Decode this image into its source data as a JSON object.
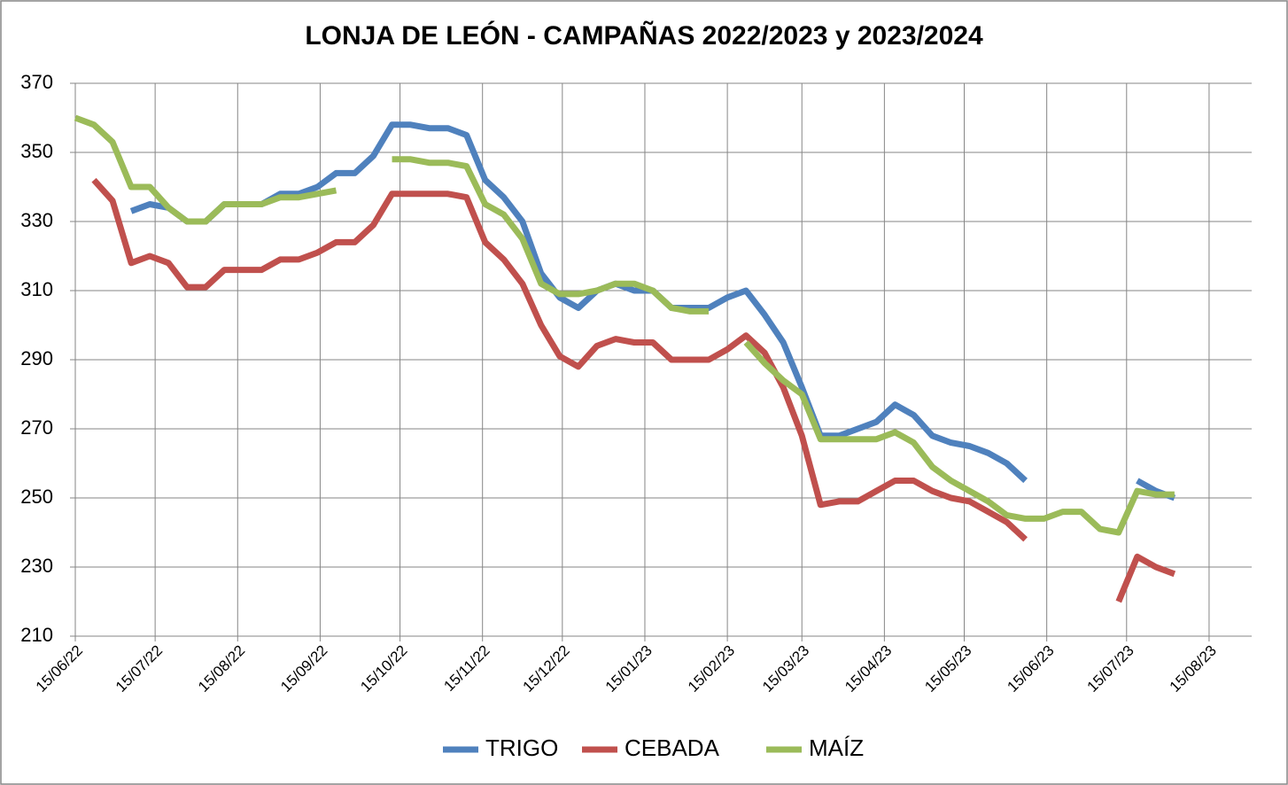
{
  "chart_data": {
    "type": "line",
    "title": "LONJA DE LEÓN - CAMPAÑAS 2022/2023 y 2023/2024",
    "x": [
      "15/06/22",
      "22/06/22",
      "29/06/22",
      "06/07/22",
      "13/07/22",
      "20/07/22",
      "27/07/22",
      "03/08/22",
      "10/08/22",
      "17/08/22",
      "24/08/22",
      "31/08/22",
      "07/09/22",
      "14/09/22",
      "21/09/22",
      "28/09/22",
      "05/10/22",
      "12/10/22",
      "19/10/22",
      "26/10/22",
      "02/11/22",
      "09/11/22",
      "16/11/22",
      "23/11/22",
      "30/11/22",
      "07/12/22",
      "14/12/22",
      "21/12/22",
      "28/12/22",
      "04/01/23",
      "11/01/23",
      "18/01/23",
      "25/01/23",
      "01/02/23",
      "08/02/23",
      "15/02/23",
      "22/02/23",
      "01/03/23",
      "08/03/23",
      "15/03/23",
      "22/03/23",
      "29/03/23",
      "05/04/23",
      "12/04/23",
      "19/04/23",
      "26/04/23",
      "03/05/23",
      "10/05/23",
      "17/05/23",
      "24/05/23",
      "31/05/23",
      "07/06/23",
      "14/06/23",
      "21/06/23",
      "28/06/23",
      "05/07/23",
      "12/07/23",
      "19/07/23",
      "26/07/23",
      "02/08/23"
    ],
    "series": [
      {
        "name": "TRIGO",
        "color": "#4f81bd",
        "values": [
          null,
          null,
          null,
          333,
          335,
          334,
          330,
          330,
          335,
          335,
          335,
          338,
          338,
          340,
          344,
          344,
          349,
          358,
          358,
          357,
          357,
          355,
          342,
          337,
          330,
          315,
          308,
          305,
          310,
          312,
          310,
          310,
          305,
          305,
          305,
          308,
          310,
          303,
          295,
          282,
          268,
          268,
          270,
          272,
          277,
          274,
          268,
          266,
          265,
          263,
          260,
          255,
          null,
          null,
          null,
          null,
          null,
          255,
          252,
          250
        ]
      },
      {
        "name": "CEBADA",
        "color": "#c0504d",
        "values": [
          null,
          342,
          336,
          318,
          320,
          318,
          311,
          311,
          316,
          316,
          316,
          319,
          319,
          321,
          324,
          324,
          329,
          338,
          338,
          338,
          338,
          337,
          324,
          319,
          312,
          300,
          291,
          288,
          294,
          296,
          295,
          295,
          290,
          290,
          290,
          293,
          297,
          292,
          282,
          268,
          248,
          249,
          249,
          252,
          255,
          255,
          252,
          250,
          249,
          246,
          243,
          238,
          null,
          null,
          null,
          null,
          220,
          233,
          230,
          228
        ]
      },
      {
        "name": "MAÍZ",
        "color": "#9bbb59",
        "values": [
          360,
          358,
          353,
          340,
          340,
          334,
          330,
          330,
          335,
          335,
          335,
          337,
          337,
          338,
          339,
          null,
          null,
          348,
          348,
          347,
          347,
          346,
          335,
          332,
          325,
          312,
          309,
          309,
          310,
          312,
          312,
          310,
          305,
          304,
          304,
          null,
          295,
          289,
          284,
          280,
          267,
          267,
          267,
          267,
          269,
          266,
          259,
          255,
          252,
          249,
          245,
          244,
          244,
          246,
          246,
          241,
          240,
          252,
          251,
          251
        ]
      }
    ],
    "xlim": [
      "15/06/22",
      "31/08/23"
    ],
    "xticks": [
      "15/06/22",
      "15/07/22",
      "15/08/22",
      "15/09/22",
      "15/10/22",
      "15/11/22",
      "15/12/22",
      "15/01/23",
      "15/02/23",
      "15/03/23",
      "15/04/23",
      "15/05/23",
      "15/06/23",
      "15/07/23",
      "15/08/23"
    ],
    "ylim": [
      210,
      370
    ],
    "yticks": [
      210,
      230,
      250,
      270,
      290,
      310,
      330,
      350,
      370
    ],
    "grid": true,
    "legend": "bottom"
  }
}
